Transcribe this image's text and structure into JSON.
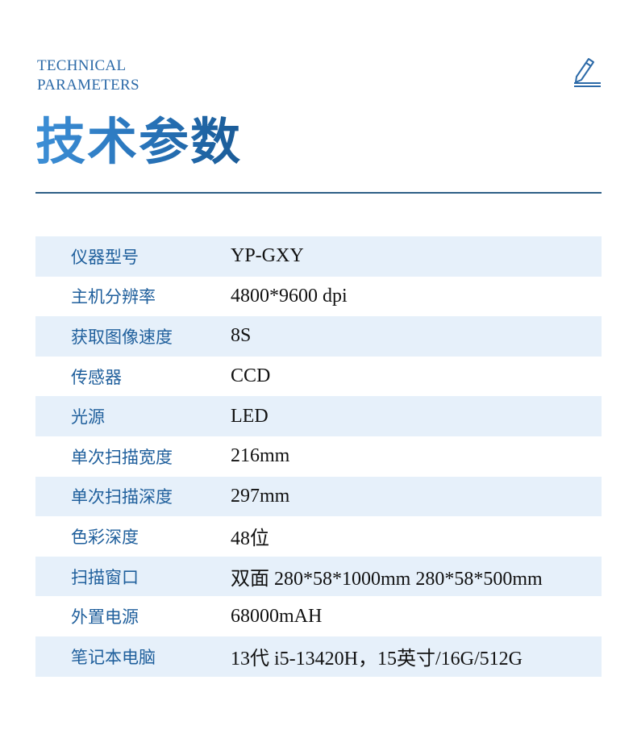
{
  "header": {
    "subtitle_line1": "TECHNICAL",
    "subtitle_line2": "PARAMETERS",
    "title": "技术参数",
    "icon": "pencil-icon"
  },
  "colors": {
    "accent": "#1f5f9c",
    "row_shade": "#e6f0fa",
    "rule": "#2e5f86"
  },
  "specs": [
    {
      "label": "仪器型号",
      "value": "YP-GXY"
    },
    {
      "label": "主机分辨率",
      "value": "4800*9600 dpi"
    },
    {
      "label": "获取图像速度",
      "value": "8S"
    },
    {
      "label": "传感器",
      "value": "CCD"
    },
    {
      "label": "光源",
      "value": "LED"
    },
    {
      "label": "单次扫描宽度",
      "value": "216mm"
    },
    {
      "label": "单次扫描深度",
      "value": "297mm"
    },
    {
      "label": "色彩深度",
      "value": "48位"
    },
    {
      "label": "扫描窗口",
      "value": "双面 280*58*1000mm 280*58*500mm"
    },
    {
      "label": "外置电源",
      "value": "68000mAH"
    },
    {
      "label": "笔记本电脑",
      "value": "13代 i5-13420H，15英寸/16G/512G"
    }
  ]
}
